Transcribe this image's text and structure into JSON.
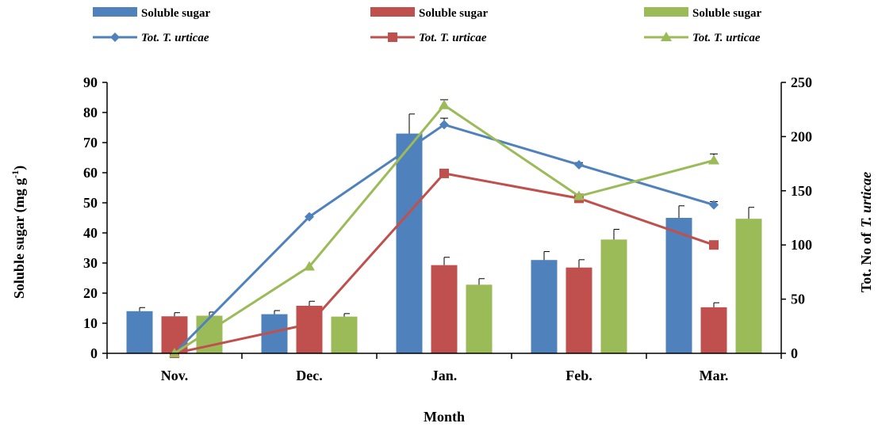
{
  "chart_data": {
    "type": "bar",
    "categories": [
      "Nov.",
      "Dec.",
      "Jan.",
      "Feb.",
      "Mar."
    ],
    "xlabel": "Month",
    "ylabel": "Soluble sugar (mg g",
    "ylabel_sup": "-1",
    "ylabel_close": ")",
    "y2label": "Tot. No of",
    "y2label_italic": "T. urticae",
    "ylim": [
      0,
      90
    ],
    "yticks": [
      0,
      10,
      20,
      30,
      40,
      50,
      60,
      70,
      80,
      90
    ],
    "y2lim": [
      0,
      250
    ],
    "y2ticks": [
      0,
      50,
      100,
      150,
      200,
      250
    ],
    "grid": false,
    "legend_position": "top",
    "bar_series": [
      {
        "name": "Soluble sugar",
        "color": "#4f81bd",
        "values": [
          14,
          13,
          73,
          31,
          45
        ],
        "errors": [
          1.2,
          1.2,
          6.5,
          2.8,
          4
        ]
      },
      {
        "name": "Soluble sugar",
        "color": "#c0504d",
        "values": [
          12.3,
          15.8,
          29.3,
          28.5,
          15.3
        ],
        "errors": [
          1.2,
          1.5,
          2.6,
          2.6,
          1.5
        ]
      },
      {
        "name": "Soluble sugar",
        "color": "#9bbb59",
        "values": [
          12.5,
          12.2,
          22.8,
          37.8,
          44.7
        ],
        "errors": [
          1.2,
          1,
          2,
          3.4,
          3.8
        ]
      }
    ],
    "line_series": [
      {
        "name": "Tot. T. urticae",
        "color": "#4f81bd",
        "marker": "diamond",
        "values": [
          0,
          126,
          211,
          174,
          137
        ],
        "errors": [
          0,
          0,
          6,
          2,
          3
        ]
      },
      {
        "name": "Tot. T. urticae",
        "color": "#c0504d",
        "marker": "square",
        "values": [
          0,
          27,
          166,
          143,
          100
        ],
        "errors": [
          0,
          0,
          0,
          0,
          0
        ]
      },
      {
        "name": "Tot. T. urticae",
        "color": "#9bbb59",
        "marker": "triangle",
        "values": [
          0,
          80,
          229,
          145,
          178
        ],
        "errors": [
          0,
          0,
          5,
          0,
          6
        ]
      }
    ]
  }
}
